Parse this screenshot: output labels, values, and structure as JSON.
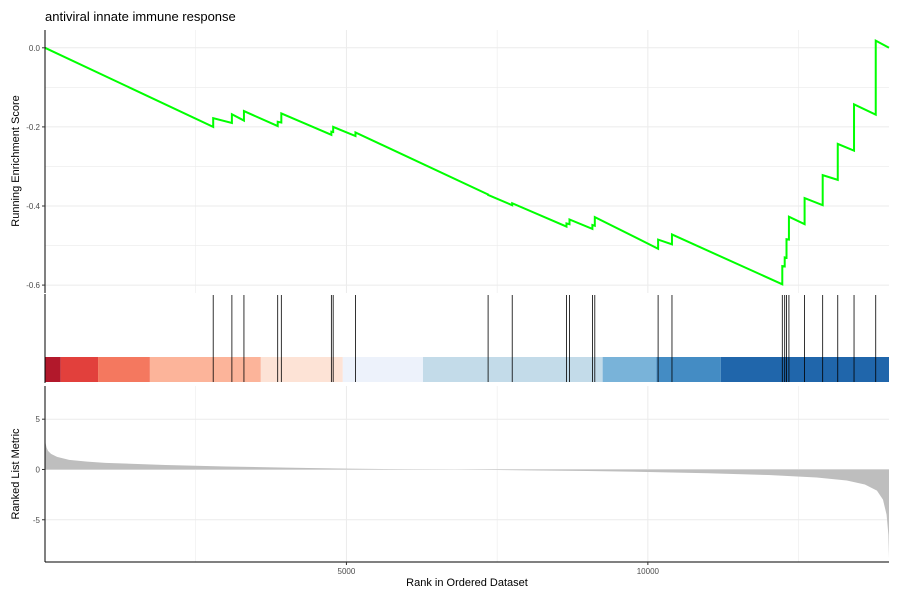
{
  "chart_data": {
    "type": "line",
    "title": "antiviral innate immune response",
    "xlabel": "Rank in Ordered Dataset",
    "n_genes": 14000,
    "x_ticks": [
      5000,
      10000
    ],
    "x_tick_labels": [
      "5000",
      "10000"
    ],
    "colors": {
      "es_line": "#00ff00",
      "metric_fill": "#bebebe",
      "hit_line": "#000000",
      "grid": "#ebebeb",
      "axis": "#000000"
    },
    "running_es": {
      "ylabel": "Running Enrichment Score",
      "ylim": [
        -0.62,
        0.045
      ],
      "y_ticks": [
        0.0,
        -0.2,
        -0.4,
        -0.6
      ],
      "y_tick_labels": [
        "0.0",
        "-0.2",
        "-0.4",
        "-0.6"
      ],
      "start_es": 0.0,
      "hits": [
        {
          "rank": 2790,
          "before": -0.2,
          "after": -0.178
        },
        {
          "rank": 3100,
          "before": -0.19,
          "after": -0.168
        },
        {
          "rank": 3300,
          "before": -0.184,
          "after": -0.16
        },
        {
          "rank": 3860,
          "before": -0.198,
          "after": -0.187
        },
        {
          "rank": 3920,
          "before": -0.189,
          "after": -0.166
        },
        {
          "rank": 4750,
          "before": -0.22,
          "after": -0.212
        },
        {
          "rank": 4780,
          "before": -0.213,
          "after": -0.2
        },
        {
          "rank": 5150,
          "before": -0.223,
          "after": -0.214
        },
        {
          "rank": 7350,
          "before": -0.371,
          "after": -0.372
        },
        {
          "rank": 7750,
          "before": -0.398,
          "after": -0.393
        },
        {
          "rank": 8650,
          "before": -0.452,
          "after": -0.444
        },
        {
          "rank": 8700,
          "before": -0.446,
          "after": -0.434
        },
        {
          "rank": 9080,
          "before": -0.458,
          "after": -0.448
        },
        {
          "rank": 9120,
          "before": -0.45,
          "after": -0.428
        },
        {
          "rank": 10170,
          "before": -0.508,
          "after": -0.485
        },
        {
          "rank": 10400,
          "before": -0.497,
          "after": -0.472
        },
        {
          "rank": 12230,
          "before": -0.598,
          "after": -0.552
        },
        {
          "rank": 12270,
          "before": -0.553,
          "after": -0.53
        },
        {
          "rank": 12300,
          "before": -0.531,
          "after": -0.484
        },
        {
          "rank": 12340,
          "before": -0.485,
          "after": -0.427
        },
        {
          "rank": 12600,
          "before": -0.446,
          "after": -0.38
        },
        {
          "rank": 12900,
          "before": -0.398,
          "after": -0.322
        },
        {
          "rank": 13150,
          "before": -0.334,
          "after": -0.243
        },
        {
          "rank": 13420,
          "before": -0.26,
          "after": -0.143
        },
        {
          "rank": 13780,
          "before": -0.169,
          "after": 0.018
        }
      ],
      "end_es": 0.0
    },
    "color_bar": {
      "segments": [
        {
          "from": 0,
          "to": 260,
          "color": "#b2182b"
        },
        {
          "from": 260,
          "to": 880,
          "color": "#e2403c"
        },
        {
          "from": 880,
          "to": 1740,
          "color": "#f4785f"
        },
        {
          "from": 1740,
          "to": 3580,
          "color": "#fcb49a"
        },
        {
          "from": 3580,
          "to": 4940,
          "color": "#fde3d6"
        },
        {
          "from": 4940,
          "to": 6270,
          "color": "#edf2fb"
        },
        {
          "from": 6270,
          "to": 9250,
          "color": "#c3dbe9"
        },
        {
          "from": 9250,
          "to": 10140,
          "color": "#79b3d9"
        },
        {
          "from": 10140,
          "to": 11210,
          "color": "#448cc4"
        },
        {
          "from": 11210,
          "to": 14000,
          "color": "#2066ab"
        }
      ]
    },
    "ranked_metric": {
      "ylabel": "Ranked List Metric",
      "ylim": [
        -9.2,
        8.3
      ],
      "y_ticks": [
        5,
        0,
        -5
      ],
      "y_tick_labels": [
        "5",
        "0",
        "-5"
      ],
      "profile": [
        [
          0,
          3.2
        ],
        [
          10,
          2.6
        ],
        [
          25,
          2.2
        ],
        [
          50,
          1.85
        ],
        [
          100,
          1.55
        ],
        [
          200,
          1.25
        ],
        [
          400,
          0.95
        ],
        [
          700,
          0.78
        ],
        [
          1000,
          0.66
        ],
        [
          2000,
          0.45
        ],
        [
          3000,
          0.3
        ],
        [
          4000,
          0.18
        ],
        [
          5000,
          0.08
        ],
        [
          6000,
          0.02
        ],
        [
          6800,
          0.0
        ],
        [
          7500,
          -0.05
        ],
        [
          9000,
          -0.15
        ],
        [
          10000,
          -0.25
        ],
        [
          11000,
          -0.38
        ],
        [
          12000,
          -0.55
        ],
        [
          12800,
          -0.8
        ],
        [
          13300,
          -1.1
        ],
        [
          13600,
          -1.5
        ],
        [
          13800,
          -2.1
        ],
        [
          13900,
          -3.0
        ],
        [
          13960,
          -4.5
        ],
        [
          13990,
          -6.5
        ],
        [
          14000,
          -8.8
        ]
      ]
    }
  }
}
